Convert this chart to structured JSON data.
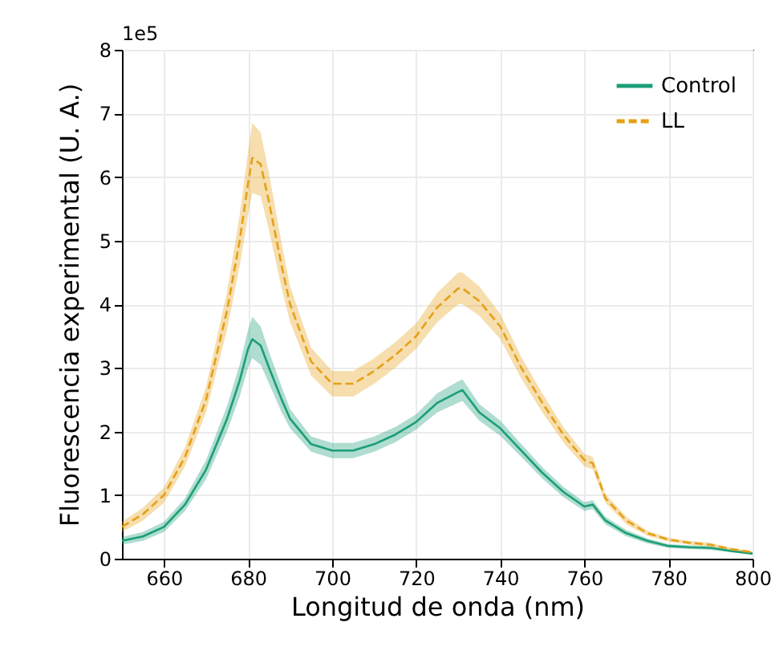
{
  "chart_data": {
    "type": "line",
    "xlabel": "Longitud de onda (nm)",
    "ylabel": "Fluorescencia experimental (U. A.)",
    "annotations": [
      "1e5"
    ],
    "xlim": [
      650,
      800
    ],
    "xticks": [
      660,
      680,
      700,
      720,
      740,
      760,
      780,
      800
    ],
    "ylim": [
      0,
      8
    ],
    "yticks": [
      0,
      1,
      2,
      3,
      4,
      5,
      6,
      7,
      8
    ],
    "grid": true,
    "legend": "top right",
    "x": [
      650,
      655,
      660,
      665,
      670,
      675,
      678,
      680,
      681,
      683,
      685,
      688,
      690,
      695,
      700,
      705,
      710,
      715,
      720,
      725,
      730,
      731,
      735,
      740,
      745,
      750,
      755,
      760,
      762,
      765,
      770,
      775,
      780,
      785,
      790,
      795,
      800
    ],
    "series": [
      {
        "name": "Control",
        "color": "#1b9e77",
        "line_style": "solid",
        "values": [
          0.28,
          0.35,
          0.5,
          0.85,
          1.4,
          2.2,
          2.8,
          3.3,
          3.45,
          3.35,
          3.0,
          2.5,
          2.2,
          1.8,
          1.7,
          1.7,
          1.8,
          1.95,
          2.15,
          2.45,
          2.62,
          2.65,
          2.3,
          2.05,
          1.7,
          1.35,
          1.05,
          0.82,
          0.85,
          0.6,
          0.4,
          0.28,
          0.2,
          0.18,
          0.17,
          0.12,
          0.08
        ],
        "lower": [
          0.22,
          0.28,
          0.42,
          0.75,
          1.25,
          2.0,
          2.55,
          3.0,
          3.15,
          3.05,
          2.75,
          2.3,
          2.05,
          1.68,
          1.58,
          1.58,
          1.68,
          1.83,
          2.03,
          2.3,
          2.45,
          2.48,
          2.17,
          1.93,
          1.6,
          1.26,
          0.97,
          0.75,
          0.78,
          0.54,
          0.35,
          0.24,
          0.17,
          0.15,
          0.14,
          0.1,
          0.06
        ],
        "upper": [
          0.34,
          0.42,
          0.58,
          0.95,
          1.55,
          2.4,
          3.05,
          3.6,
          3.8,
          3.65,
          3.25,
          2.7,
          2.35,
          1.92,
          1.82,
          1.82,
          1.92,
          2.07,
          2.27,
          2.6,
          2.79,
          2.82,
          2.43,
          2.17,
          1.8,
          1.44,
          1.13,
          0.89,
          0.92,
          0.66,
          0.45,
          0.32,
          0.23,
          0.21,
          0.2,
          0.14,
          0.1
        ]
      },
      {
        "name": "LL",
        "color": "#e6a016",
        "line_style": "dashed",
        "values": [
          0.5,
          0.7,
          1.0,
          1.6,
          2.5,
          3.9,
          5.0,
          5.9,
          6.3,
          6.2,
          5.6,
          4.6,
          4.0,
          3.1,
          2.75,
          2.75,
          2.95,
          3.2,
          3.5,
          3.95,
          4.25,
          4.25,
          4.05,
          3.65,
          3.0,
          2.45,
          1.95,
          1.55,
          1.5,
          0.95,
          0.6,
          0.4,
          0.3,
          0.25,
          0.22,
          0.15,
          0.1
        ],
        "lower": [
          0.42,
          0.6,
          0.88,
          1.45,
          2.3,
          3.6,
          4.6,
          5.4,
          5.75,
          5.7,
          5.15,
          4.25,
          3.72,
          2.88,
          2.55,
          2.55,
          2.75,
          3.0,
          3.3,
          3.72,
          4.0,
          4.0,
          3.82,
          3.45,
          2.83,
          2.3,
          1.83,
          1.45,
          1.4,
          0.88,
          0.54,
          0.36,
          0.27,
          0.22,
          0.19,
          0.13,
          0.08
        ],
        "upper": [
          0.58,
          0.8,
          1.12,
          1.75,
          2.7,
          4.2,
          5.4,
          6.4,
          6.85,
          6.7,
          6.05,
          4.95,
          4.28,
          3.32,
          2.95,
          2.95,
          3.15,
          3.4,
          3.7,
          4.18,
          4.5,
          4.5,
          4.28,
          3.85,
          3.17,
          2.6,
          2.07,
          1.65,
          1.6,
          1.02,
          0.66,
          0.44,
          0.33,
          0.28,
          0.25,
          0.17,
          0.12
        ]
      }
    ]
  }
}
